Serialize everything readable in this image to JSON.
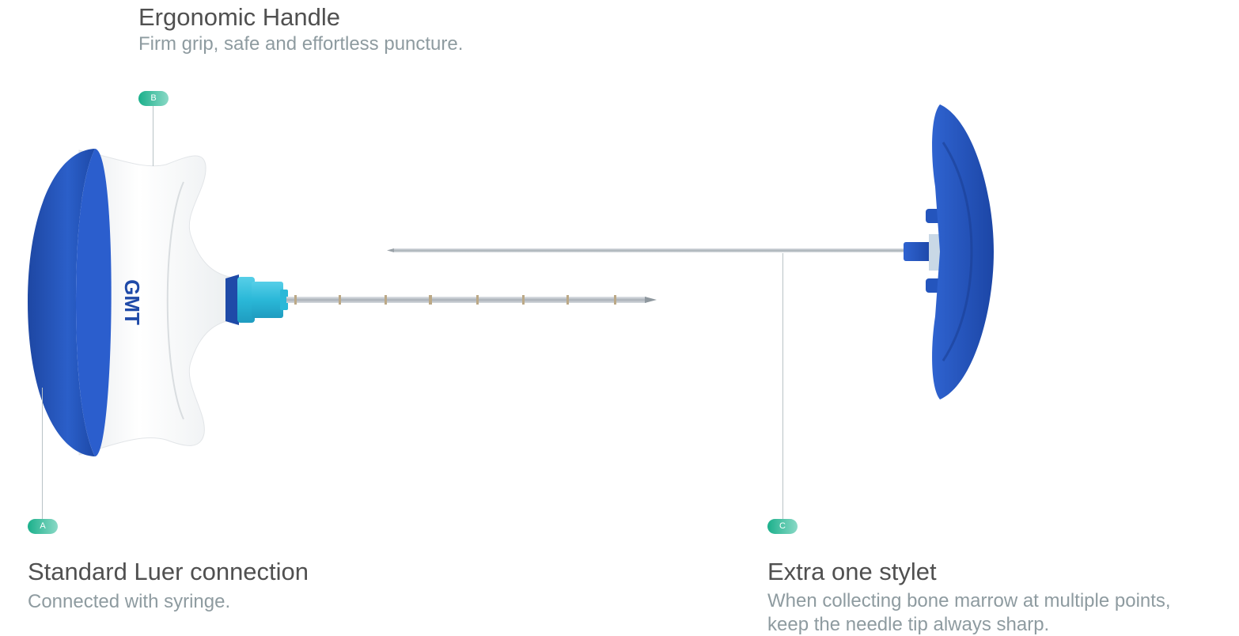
{
  "callouts": {
    "b": {
      "badge": "B",
      "title": "Ergonomic Handle",
      "subtitle": "Firm grip, safe and effortless puncture."
    },
    "a": {
      "badge": "A",
      "title": "Standard Luer connection",
      "subtitle": "Connected with syringe."
    },
    "c": {
      "badge": "C",
      "title": "Extra one stylet",
      "subtitle_line1": "When collecting bone marrow at multiple points,",
      "subtitle_line2": "keep the needle tip always sharp."
    }
  },
  "brand": {
    "logo_text": "GMT"
  },
  "colors": {
    "handle_blue": "#2454b8",
    "badge_green": "#1bb08b",
    "luer_cyan": "#2ab8d8",
    "handle_white": "#f7f7f7"
  }
}
